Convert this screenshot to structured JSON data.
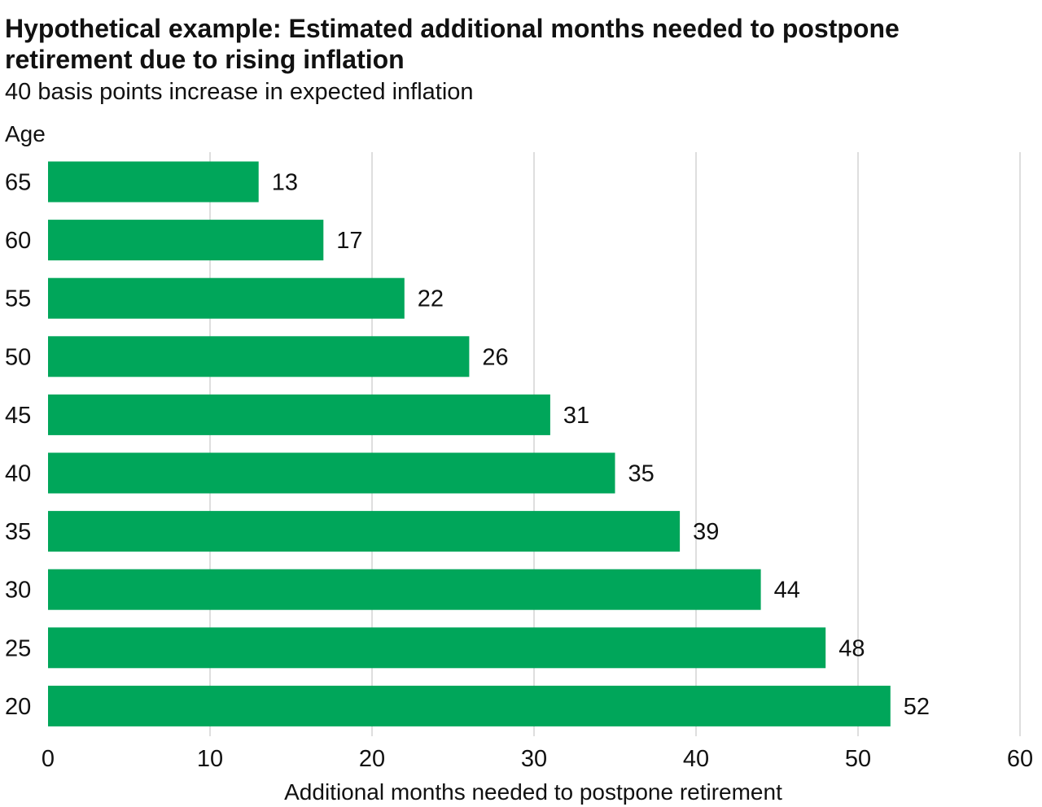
{
  "chart_data": {
    "type": "bar",
    "orientation": "horizontal",
    "title": "Hypothetical example: Estimated additional months needed to postpone retirement due to rising inflation",
    "title_lines": [
      "Hypothetical example: Estimated additional months needed to postpone",
      "retirement due to rising inflation"
    ],
    "subtitle": "40 basis points increase in expected inflation",
    "ylabel": "Age",
    "xlabel": "Additional months needed to postpone retirement",
    "categories": [
      "65",
      "60",
      "55",
      "50",
      "45",
      "40",
      "35",
      "30",
      "25",
      "20"
    ],
    "values": [
      13,
      17,
      22,
      26,
      31,
      35,
      39,
      44,
      48,
      52
    ],
    "xlim": [
      0,
      60
    ],
    "xticks": [
      0,
      10,
      20,
      30,
      40,
      50,
      60
    ],
    "grid": true,
    "legend": "none",
    "bar_color": "#00a65a"
  }
}
